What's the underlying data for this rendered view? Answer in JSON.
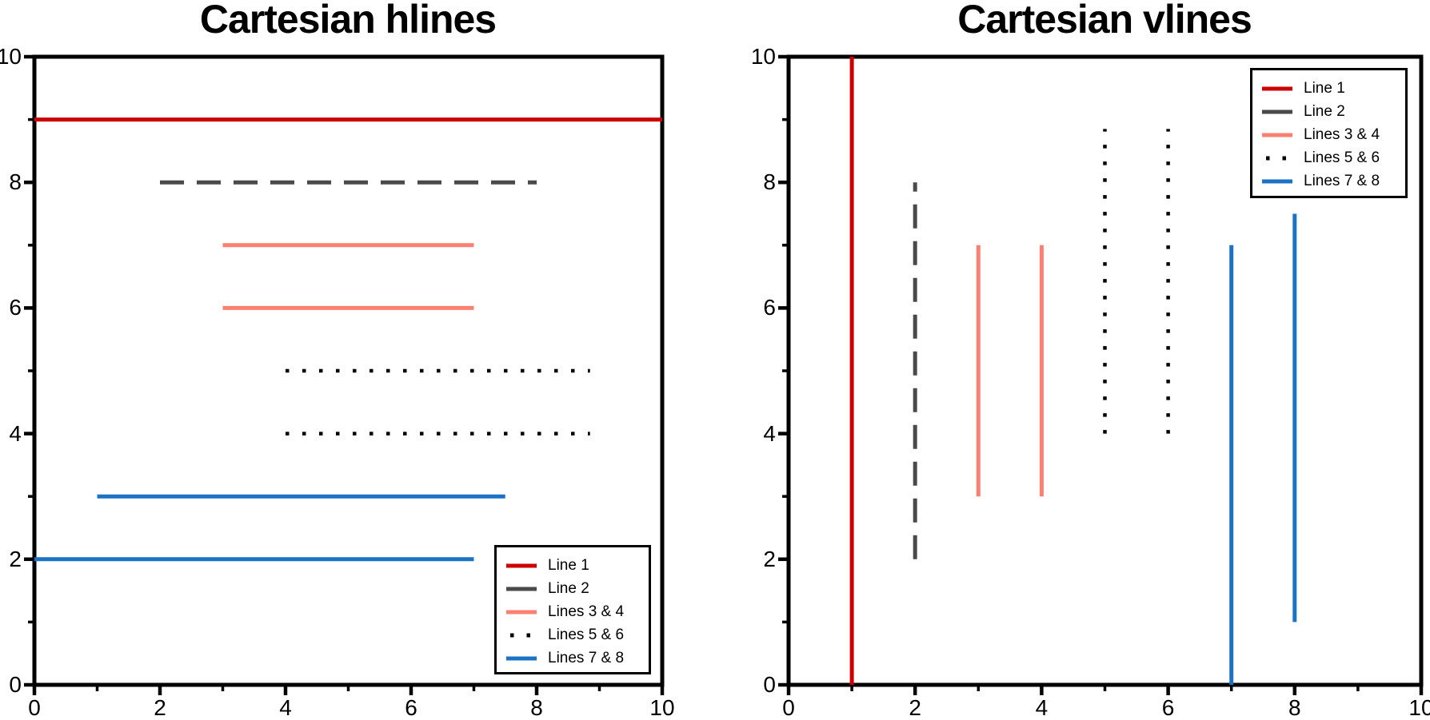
{
  "figure": {
    "background": "#ffffff",
    "axis_color": "#000000"
  },
  "chart_data": [
    {
      "type": "hlines",
      "title": "Cartesian hlines",
      "xlabel": "",
      "ylabel": "",
      "xlim": [
        0,
        10
      ],
      "ylim": [
        0,
        10
      ],
      "xticks": [
        0,
        2,
        4,
        6,
        8,
        10
      ],
      "yticks": [
        0,
        2,
        4,
        6,
        8,
        10
      ],
      "xminorticks": [
        1,
        3,
        5,
        7,
        9
      ],
      "yminorticks": [
        1,
        3,
        5,
        7,
        9
      ],
      "grid": false,
      "legend_position": "lower right",
      "lines": [
        {
          "series": "Line 1",
          "color": "#cc0000",
          "linestyle": "solid",
          "y": 9,
          "xmin": 0,
          "xmax": 10
        },
        {
          "series": "Line 2",
          "color": "#4a4a4a",
          "linestyle": "dashed",
          "y": 8,
          "xmin": 2,
          "xmax": 8
        },
        {
          "series": "Lines 3 & 4",
          "color": "#fa8072",
          "linestyle": "solid",
          "y": 7,
          "xmin": 3,
          "xmax": 7
        },
        {
          "series": "Lines 3 & 4",
          "color": "#fa8072",
          "linestyle": "solid",
          "y": 6,
          "xmin": 3,
          "xmax": 7
        },
        {
          "series": "Lines 5 & 6",
          "color": "#000000",
          "linestyle": "dotted",
          "y": 5,
          "xmin": 4,
          "xmax": 8.85
        },
        {
          "series": "Lines 5 & 6",
          "color": "#000000",
          "linestyle": "dotted",
          "y": 4,
          "xmin": 4,
          "xmax": 8.85
        },
        {
          "series": "Lines 7 & 8",
          "color": "#1c73c6",
          "linestyle": "solid",
          "y": 3,
          "xmin": 1,
          "xmax": 7.5
        },
        {
          "series": "Lines 7 & 8",
          "color": "#1c73c6",
          "linestyle": "solid",
          "y": 2,
          "xmin": 0,
          "xmax": 7
        }
      ],
      "legend": [
        {
          "label": "Line 1",
          "color": "#cc0000",
          "linestyle": "solid"
        },
        {
          "label": "Line 2",
          "color": "#4a4a4a",
          "linestyle": "dashed"
        },
        {
          "label": "Lines 3 & 4",
          "color": "#fa8072",
          "linestyle": "solid"
        },
        {
          "label": "Lines 5 & 6",
          "color": "#000000",
          "linestyle": "dotted"
        },
        {
          "label": "Lines 7 & 8",
          "color": "#1c73c6",
          "linestyle": "solid"
        }
      ]
    },
    {
      "type": "vlines",
      "title": "Cartesian vlines",
      "xlabel": "",
      "ylabel": "",
      "xlim": [
        0,
        10
      ],
      "ylim": [
        0,
        10
      ],
      "xticks": [
        0,
        2,
        4,
        6,
        8,
        10
      ],
      "yticks": [
        0,
        2,
        4,
        6,
        8,
        10
      ],
      "xminorticks": [
        1,
        3,
        5,
        7,
        9
      ],
      "yminorticks": [
        1,
        3,
        5,
        7,
        9
      ],
      "grid": false,
      "legend_position": "upper right",
      "lines": [
        {
          "series": "Line 1",
          "color": "#cc0000",
          "linestyle": "solid",
          "x": 1,
          "ymin": 0,
          "ymax": 10
        },
        {
          "series": "Line 2",
          "color": "#4a4a4a",
          "linestyle": "dashed",
          "x": 2,
          "ymin": 2,
          "ymax": 8
        },
        {
          "series": "Lines 3 & 4",
          "color": "#fa8072",
          "linestyle": "solid",
          "x": 3,
          "ymin": 3,
          "ymax": 7
        },
        {
          "series": "Lines 3 & 4",
          "color": "#fa8072",
          "linestyle": "solid",
          "x": 4,
          "ymin": 3,
          "ymax": 7
        },
        {
          "series": "Lines 5 & 6",
          "color": "#000000",
          "linestyle": "dotted",
          "x": 5,
          "ymin": 4,
          "ymax": 8.85
        },
        {
          "series": "Lines 5 & 6",
          "color": "#000000",
          "linestyle": "dotted",
          "x": 6,
          "ymin": 4,
          "ymax": 8.85
        },
        {
          "series": "Lines 7 & 8",
          "color": "#1c73c6",
          "linestyle": "solid",
          "x": 7,
          "ymin": 0,
          "ymax": 7
        },
        {
          "series": "Lines 7 & 8",
          "color": "#1c73c6",
          "linestyle": "solid",
          "x": 8,
          "ymin": 1,
          "ymax": 7.5
        }
      ],
      "legend": [
        {
          "label": "Line 1",
          "color": "#cc0000",
          "linestyle": "solid"
        },
        {
          "label": "Line 2",
          "color": "#4a4a4a",
          "linestyle": "dashed"
        },
        {
          "label": "Lines 3 & 4",
          "color": "#fa8072",
          "linestyle": "solid"
        },
        {
          "label": "Lines 5 & 6",
          "color": "#000000",
          "linestyle": "dotted"
        },
        {
          "label": "Lines 7 & 8",
          "color": "#1c73c6",
          "linestyle": "solid"
        }
      ]
    }
  ]
}
